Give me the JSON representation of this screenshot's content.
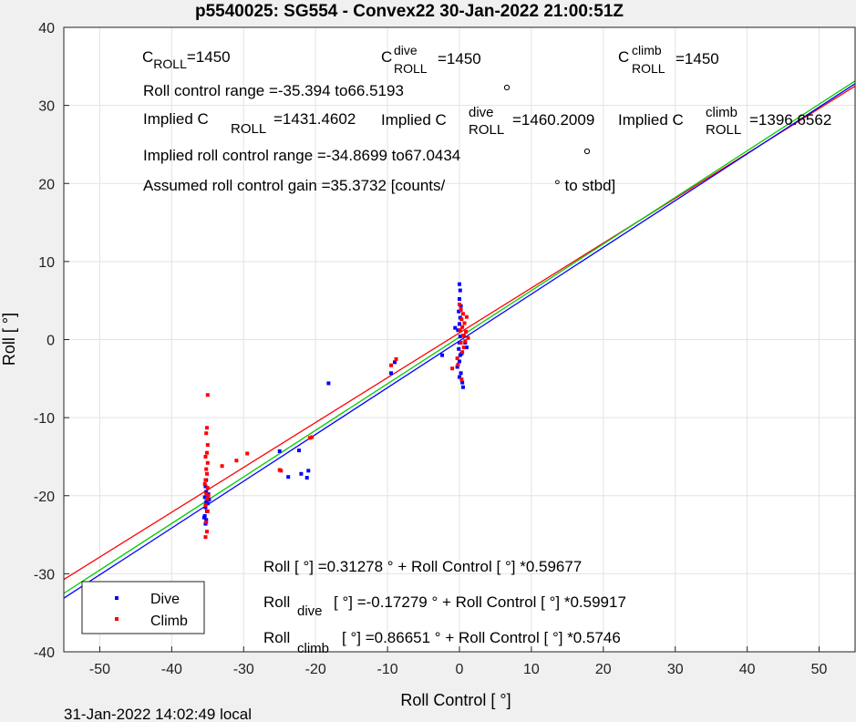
{
  "chart_data": {
    "type": "scatter",
    "title": "p5540025: SG554 - Convex22 30-Jan-2022 21:00:51Z",
    "xlabel": "Roll Control [ °]",
    "ylabel": "Roll [ °]",
    "xlim": [
      -55,
      55
    ],
    "ylim": [
      -40,
      40
    ],
    "xticks": [
      -50,
      -40,
      -30,
      -20,
      -10,
      0,
      10,
      20,
      30,
      40,
      50
    ],
    "yticks": [
      -40,
      -30,
      -20,
      -10,
      0,
      10,
      20,
      30,
      40
    ],
    "grid": true,
    "legend_position": "bottom-left",
    "series": [
      {
        "name": "Dive",
        "color": "#0000ff",
        "points": [
          [
            -35.2,
            -18.0
          ],
          [
            -35.3,
            -18.8
          ],
          [
            -35.2,
            -19.5
          ],
          [
            -35.4,
            -20.2
          ],
          [
            -35.2,
            -20.8
          ],
          [
            -35.3,
            -21.5
          ],
          [
            -35.1,
            -22.0
          ],
          [
            -35.4,
            -22.6
          ],
          [
            -35.2,
            -23.1
          ],
          [
            -35.3,
            -23.6
          ],
          [
            -35.0,
            -21.0
          ],
          [
            -34.8,
            -20.5
          ],
          [
            -34.9,
            -19.8
          ],
          [
            -35.5,
            -22.8
          ],
          [
            -25.0,
            -14.3
          ],
          [
            -23.8,
            -17.6
          ],
          [
            -22.3,
            -14.2
          ],
          [
            -22.0,
            -17.2
          ],
          [
            -21.2,
            -17.7
          ],
          [
            -21.0,
            -16.8
          ],
          [
            -18.2,
            -5.6
          ],
          [
            -9.5,
            -4.3
          ],
          [
            -9.0,
            -2.9
          ],
          [
            -2.4,
            -2.0
          ],
          [
            0.0,
            7.1
          ],
          [
            0.1,
            6.3
          ],
          [
            0.0,
            5.2
          ],
          [
            0.2,
            4.3
          ],
          [
            -0.1,
            3.6
          ],
          [
            0.1,
            2.8
          ],
          [
            0.0,
            2.0
          ],
          [
            -0.2,
            1.2
          ],
          [
            0.1,
            0.4
          ],
          [
            0.0,
            -0.4
          ],
          [
            -0.1,
            -1.2
          ],
          [
            0.1,
            -2.0
          ],
          [
            0.0,
            -2.8
          ],
          [
            -0.3,
            -3.5
          ],
          [
            0.2,
            -4.3
          ],
          [
            0.0,
            -4.8
          ],
          [
            0.4,
            -5.5
          ],
          [
            0.5,
            -6.1
          ],
          [
            0.6,
            0.5
          ],
          [
            0.8,
            -0.4
          ],
          [
            1.0,
            -1.0
          ],
          [
            -0.6,
            1.5
          ],
          [
            0.3,
            -1.8
          ]
        ]
      },
      {
        "name": "Climb",
        "color": "#ff0000",
        "points": [
          [
            -35.0,
            -7.1
          ],
          [
            -35.1,
            -11.3
          ],
          [
            -35.2,
            -12.0
          ],
          [
            -35.0,
            -13.5
          ],
          [
            -35.1,
            -14.5
          ],
          [
            -35.3,
            -15.0
          ],
          [
            -35.0,
            -15.8
          ],
          [
            -35.2,
            -16.6
          ],
          [
            -35.1,
            -17.2
          ],
          [
            -35.3,
            -18.0
          ],
          [
            -35.0,
            -19.0
          ],
          [
            -35.2,
            -19.8
          ],
          [
            -35.1,
            -20.4
          ],
          [
            -35.3,
            -21.2
          ],
          [
            -35.0,
            -22.0
          ],
          [
            -35.2,
            -23.4
          ],
          [
            -35.1,
            -24.6
          ],
          [
            -35.3,
            -25.3
          ],
          [
            -34.9,
            -20.0
          ],
          [
            -35.4,
            -18.5
          ],
          [
            -33.0,
            -16.2
          ],
          [
            -31.0,
            -15.5
          ],
          [
            -29.5,
            -14.6
          ],
          [
            -25.0,
            -16.7
          ],
          [
            -24.8,
            -16.8
          ],
          [
            -20.8,
            -12.6
          ],
          [
            -20.5,
            -12.5
          ],
          [
            -9.5,
            -3.3
          ],
          [
            -8.8,
            -2.5
          ],
          [
            -1.0,
            -3.7
          ],
          [
            -0.2,
            -3.2
          ],
          [
            0.3,
            -5.1
          ],
          [
            0.0,
            4.5
          ],
          [
            0.2,
            3.8
          ],
          [
            0.5,
            3.3
          ],
          [
            0.3,
            2.6
          ],
          [
            0.7,
            2.1
          ],
          [
            0.4,
            1.6
          ],
          [
            0.9,
            1.0
          ],
          [
            0.5,
            0.5
          ],
          [
            1.2,
            0.2
          ],
          [
            0.2,
            -0.4
          ],
          [
            0.6,
            -1.0
          ],
          [
            0.4,
            -1.6
          ],
          [
            -0.3,
            -2.4
          ],
          [
            1.0,
            2.9
          ],
          [
            0.8,
            -0.2
          ],
          [
            0.1,
            1.2
          ]
        ]
      }
    ],
    "fit_lines": [
      {
        "name": "Roll",
        "color": "#00cc00",
        "intercept": 0.31278,
        "slope": 0.59677
      },
      {
        "name": "Roll dive",
        "color": "#0000ff",
        "intercept": -0.17279,
        "slope": 0.59917
      },
      {
        "name": "Roll climb",
        "color": "#ff0000",
        "intercept": 0.86651,
        "slope": 0.5746
      }
    ]
  },
  "annotations": {
    "c_roll": {
      "base": "C",
      "sub": "ROLL",
      "value": "=1450"
    },
    "c_roll_dive": {
      "base": "C",
      "sup": "dive",
      "sub": "ROLL",
      "value": "=1450"
    },
    "c_roll_climb": {
      "base": "C",
      "sup": "climb",
      "sub": "ROLL",
      "value": "=1450"
    },
    "roll_control_range": "Roll control range =-35.394 to66.5193",
    "implied_c_roll": {
      "label": "Implied C",
      "sub": "ROLL",
      "value": "=1431.4602"
    },
    "implied_c_roll_dive": {
      "label": "Implied C",
      "sup": "dive",
      "sub": "ROLL",
      "value": "=1460.2009"
    },
    "implied_c_roll_climb": {
      "label": "Implied C",
      "sup": "climb",
      "sub": "ROLL",
      "value": "=1396.6562"
    },
    "implied_range": "Implied roll control range =-34.8699 to67.0434",
    "gain": "Assumed roll control gain =35.3732 [counts/",
    "gain_unit": "° to stbd]",
    "fit_all": "Roll [ °] =0.31278    ° + Roll Control [    °] *0.59677",
    "fit_dive_label": "Roll",
    "fit_dive_sub": "dive",
    "fit_dive_rest": "[ °] =-0.17279    ° + Roll Control [    °] *0.59917",
    "fit_climb_label": "Roll",
    "fit_climb_sub": "climb",
    "fit_climb_rest": "[ °] =0.86651    ° + Roll Control [    °] *0.5746"
  },
  "legend": {
    "dive": "Dive",
    "climb": "Climb"
  },
  "footer": "31-Jan-2022 14:02:49 local"
}
